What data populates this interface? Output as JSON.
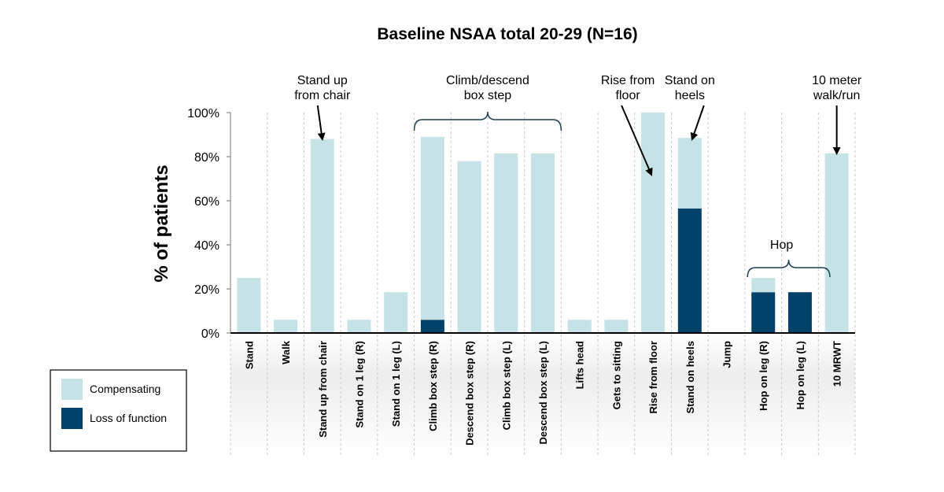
{
  "chart_data": {
    "type": "bar",
    "stacked": true,
    "title": "Baseline NSAA total 20-29 (N=16)",
    "ylabel": "% of patients",
    "xlabel": "",
    "ylim": [
      0,
      100
    ],
    "yticks": [
      "0%",
      "20%",
      "40%",
      "60%",
      "80%",
      "100%"
    ],
    "grid": false,
    "legend_position": "bottom-left",
    "categories": [
      "Stand",
      "Walk",
      "Stand up from chair",
      "Stand on 1 leg (R)",
      "Stand on 1 leg (L)",
      "Climb box step (R)",
      "Descend box step (R)",
      "Climb box step (L)",
      "Descend box step (L)",
      "Lifts head",
      "Gets to sitting",
      "Rise from floor",
      "Stand on heels",
      "Jump",
      "Hop on leg (R)",
      "Hop on leg (L)",
      "10 MRWT"
    ],
    "series": [
      {
        "name": "Loss of function",
        "color": "#00426a",
        "values": [
          0,
          0,
          0,
          0,
          0,
          6,
          0,
          0,
          0,
          0,
          0,
          0,
          56.5,
          0,
          18.5,
          18.5,
          0
        ]
      },
      {
        "name": "Compensating",
        "color": "#c5e2e6",
        "values": [
          25,
          6,
          88,
          6,
          18.5,
          83,
          78,
          81.5,
          81.5,
          6,
          6,
          100,
          32,
          0,
          6.5,
          0,
          81.5
        ]
      }
    ],
    "annotations": [
      {
        "id": "stand-up",
        "lines": [
          "Stand up",
          "from chair"
        ]
      },
      {
        "id": "climb-descend",
        "lines": [
          "Climb/descend",
          "box step"
        ]
      },
      {
        "id": "rise-floor",
        "lines": [
          "Rise from",
          "floor"
        ]
      },
      {
        "id": "stand-heels",
        "lines": [
          "Stand on",
          "heels"
        ]
      },
      {
        "id": "ten-meter",
        "lines": [
          "10 meter",
          "walk/run"
        ]
      },
      {
        "id": "hop",
        "lines": [
          "Hop"
        ]
      }
    ]
  }
}
